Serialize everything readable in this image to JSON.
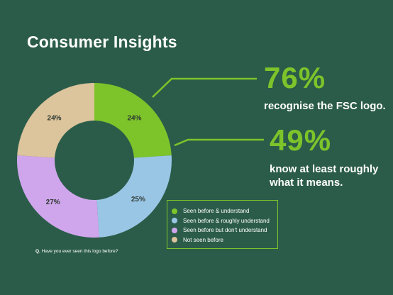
{
  "title": "Consumer Insights",
  "stats": [
    {
      "value": "76%",
      "text_lines": [
        "recognise the FSC logo."
      ]
    },
    {
      "value": "49%",
      "text_lines": [
        "know at least roughly",
        "what it means."
      ]
    }
  ],
  "question": {
    "prefix": "Q.",
    "text": "Have you ever seen this logo before?"
  },
  "colors": {
    "background": "#2b5c49",
    "accent": "#7dc42b"
  },
  "chart_data": {
    "type": "pie",
    "donut": true,
    "categories": [
      "Seen before & understand",
      "Seen before & roughly understand",
      "Seen before but don't understand",
      "Not seen before"
    ],
    "values": [
      24,
      25,
      27,
      24
    ],
    "labels": [
      "24%",
      "25%",
      "27%",
      "24%"
    ],
    "colors": [
      "#7dc42b",
      "#9ac6e6",
      "#cfa6ec",
      "#dcc49c"
    ],
    "legend": "bottom-right"
  }
}
